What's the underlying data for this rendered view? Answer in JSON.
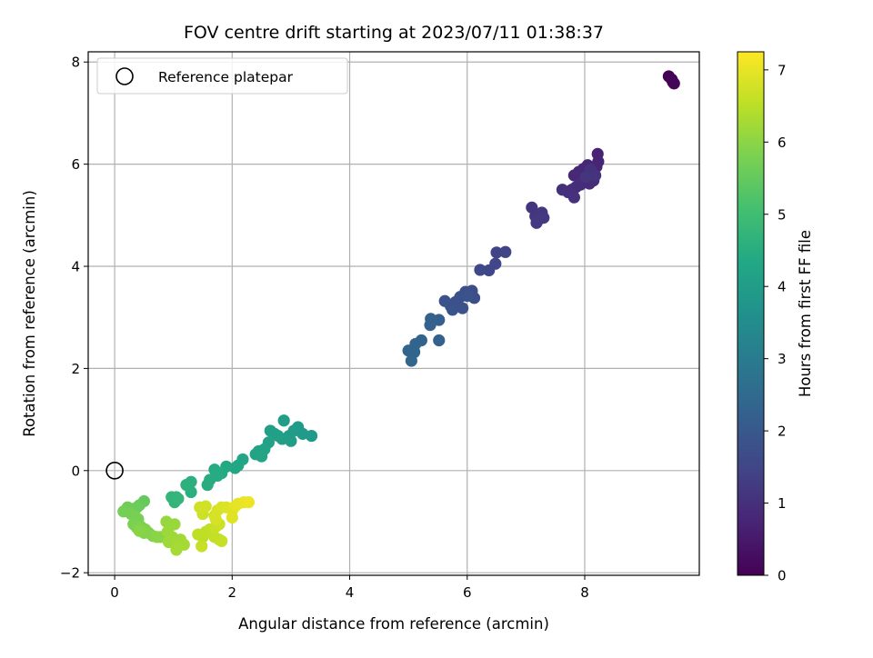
{
  "chart_data": {
    "type": "scatter",
    "title": "FOV centre drift starting at 2023/07/11 01:38:37",
    "xlabel": "Angular distance from reference (arcmin)",
    "ylabel": "Rotation from reference (arcmin)",
    "xlim": [
      -0.45,
      9.95
    ],
    "ylim": [
      -2.05,
      8.2
    ],
    "xticks": [
      0,
      2,
      4,
      6,
      8
    ],
    "xtick_labels": [
      "0",
      "2",
      "4",
      "6",
      "8"
    ],
    "yticks": [
      -2,
      0,
      2,
      4,
      6,
      8
    ],
    "ytick_labels": [
      "−2",
      "0",
      "2",
      "4",
      "6",
      "8"
    ],
    "grid": true,
    "legend": {
      "placement": "upper-left",
      "entries": [
        {
          "label": "Reference platepar",
          "marker": "open-circle"
        }
      ]
    },
    "reference_point": {
      "x": 0,
      "y": 0
    },
    "colorbar": {
      "label": "Hours from first FF file",
      "colormap": "viridis",
      "range": [
        0,
        7.25
      ],
      "ticks": [
        0,
        1,
        2,
        3,
        4,
        5,
        6,
        7
      ],
      "tick_labels": [
        "0",
        "1",
        "2",
        "3",
        "4",
        "5",
        "6",
        "7"
      ]
    },
    "series": [
      {
        "points": [
          {
            "x": 9.43,
            "y": 7.72,
            "t": 0.0
          },
          {
            "x": 9.48,
            "y": 7.66,
            "t": 0.03
          },
          {
            "x": 9.52,
            "y": 7.58,
            "t": 0.06
          },
          {
            "x": 9.5,
            "y": 7.61,
            "t": 0.09
          },
          {
            "x": 8.22,
            "y": 6.2,
            "t": 0.7
          },
          {
            "x": 8.23,
            "y": 6.05,
            "t": 0.72
          },
          {
            "x": 8.2,
            "y": 5.95,
            "t": 0.74
          },
          {
            "x": 8.12,
            "y": 5.85,
            "t": 0.76
          },
          {
            "x": 8.05,
            "y": 5.98,
            "t": 0.78
          },
          {
            "x": 7.98,
            "y": 5.91,
            "t": 0.8
          },
          {
            "x": 7.9,
            "y": 5.85,
            "t": 0.82
          },
          {
            "x": 7.82,
            "y": 5.78,
            "t": 0.84
          },
          {
            "x": 8.0,
            "y": 5.7,
            "t": 0.86
          },
          {
            "x": 8.08,
            "y": 5.62,
            "t": 0.88
          },
          {
            "x": 8.15,
            "y": 5.68,
            "t": 0.9
          },
          {
            "x": 7.93,
            "y": 5.6,
            "t": 0.92
          },
          {
            "x": 7.85,
            "y": 5.55,
            "t": 0.94
          },
          {
            "x": 7.78,
            "y": 5.5,
            "t": 0.96
          },
          {
            "x": 7.72,
            "y": 5.45,
            "t": 0.98
          },
          {
            "x": 7.62,
            "y": 5.5,
            "t": 1.0
          },
          {
            "x": 7.82,
            "y": 5.35,
            "t": 1.02
          },
          {
            "x": 8.1,
            "y": 5.9,
            "t": 1.04
          },
          {
            "x": 8.18,
            "y": 5.78,
            "t": 1.06
          },
          {
            "x": 8.02,
            "y": 5.75,
            "t": 1.08
          },
          {
            "x": 7.1,
            "y": 5.15,
            "t": 1.12
          },
          {
            "x": 7.27,
            "y": 5.05,
            "t": 1.14
          },
          {
            "x": 7.16,
            "y": 4.98,
            "t": 1.16
          },
          {
            "x": 7.3,
            "y": 4.95,
            "t": 1.18
          },
          {
            "x": 7.22,
            "y": 4.92,
            "t": 1.2
          },
          {
            "x": 7.18,
            "y": 4.85,
            "t": 1.22
          },
          {
            "x": 6.65,
            "y": 4.28,
            "t": 1.45
          },
          {
            "x": 6.5,
            "y": 4.27,
            "t": 1.48
          },
          {
            "x": 6.48,
            "y": 4.05,
            "t": 1.5
          },
          {
            "x": 6.37,
            "y": 3.92,
            "t": 1.52
          },
          {
            "x": 6.22,
            "y": 3.93,
            "t": 1.55
          },
          {
            "x": 6.08,
            "y": 3.52,
            "t": 1.7
          },
          {
            "x": 5.97,
            "y": 3.5,
            "t": 1.72
          },
          {
            "x": 6.12,
            "y": 3.38,
            "t": 1.74
          },
          {
            "x": 5.88,
            "y": 3.4,
            "t": 1.76
          },
          {
            "x": 5.8,
            "y": 3.3,
            "t": 1.78
          },
          {
            "x": 5.72,
            "y": 3.22,
            "t": 1.8
          },
          {
            "x": 5.92,
            "y": 3.18,
            "t": 1.82
          },
          {
            "x": 5.62,
            "y": 3.32,
            "t": 1.84
          },
          {
            "x": 5.75,
            "y": 3.15,
            "t": 1.86
          },
          {
            "x": 6.0,
            "y": 3.42,
            "t": 1.88
          },
          {
            "x": 5.52,
            "y": 2.95,
            "t": 2.2
          },
          {
            "x": 5.38,
            "y": 2.97,
            "t": 2.22
          },
          {
            "x": 5.37,
            "y": 2.85,
            "t": 2.24
          },
          {
            "x": 5.52,
            "y": 2.55,
            "t": 2.26
          },
          {
            "x": 5.22,
            "y": 2.55,
            "t": 2.3
          },
          {
            "x": 5.12,
            "y": 2.48,
            "t": 2.32
          },
          {
            "x": 5.0,
            "y": 2.35,
            "t": 2.34
          },
          {
            "x": 5.1,
            "y": 2.32,
            "t": 2.36
          },
          {
            "x": 5.05,
            "y": 2.15,
            "t": 2.38
          },
          {
            "x": 3.35,
            "y": 0.68,
            "t": 3.9
          },
          {
            "x": 3.2,
            "y": 0.72,
            "t": 3.92
          },
          {
            "x": 3.12,
            "y": 0.85,
            "t": 3.94
          },
          {
            "x": 3.05,
            "y": 0.78,
            "t": 3.96
          },
          {
            "x": 2.97,
            "y": 0.68,
            "t": 3.98
          },
          {
            "x": 2.88,
            "y": 0.98,
            "t": 4.0
          },
          {
            "x": 2.85,
            "y": 0.62,
            "t": 4.02
          },
          {
            "x": 3.0,
            "y": 0.58,
            "t": 4.04
          },
          {
            "x": 2.78,
            "y": 0.68,
            "t": 4.06
          },
          {
            "x": 2.65,
            "y": 0.78,
            "t": 4.08
          },
          {
            "x": 2.72,
            "y": 0.72,
            "t": 4.1
          },
          {
            "x": 2.62,
            "y": 0.55,
            "t": 4.12
          },
          {
            "x": 2.55,
            "y": 0.42,
            "t": 4.16
          },
          {
            "x": 2.45,
            "y": 0.38,
            "t": 4.18
          },
          {
            "x": 2.4,
            "y": 0.32,
            "t": 4.2
          },
          {
            "x": 2.5,
            "y": 0.28,
            "t": 4.22
          },
          {
            "x": 2.18,
            "y": 0.22,
            "t": 4.28
          },
          {
            "x": 2.1,
            "y": 0.1,
            "t": 4.3
          },
          {
            "x": 2.05,
            "y": 0.05,
            "t": 4.32
          },
          {
            "x": 1.9,
            "y": 0.08,
            "t": 4.36
          },
          {
            "x": 1.82,
            "y": -0.05,
            "t": 4.4
          },
          {
            "x": 1.7,
            "y": 0.02,
            "t": 4.42
          },
          {
            "x": 1.75,
            "y": -0.1,
            "t": 4.44
          },
          {
            "x": 1.62,
            "y": -0.18,
            "t": 4.46
          },
          {
            "x": 1.58,
            "y": -0.28,
            "t": 4.48
          },
          {
            "x": 1.3,
            "y": -0.42,
            "t": 4.56
          },
          {
            "x": 1.3,
            "y": -0.22,
            "t": 4.58
          },
          {
            "x": 1.22,
            "y": -0.28,
            "t": 4.6
          },
          {
            "x": 1.05,
            "y": -0.52,
            "t": 4.7
          },
          {
            "x": 0.97,
            "y": -0.52,
            "t": 4.72
          },
          {
            "x": 1.02,
            "y": -0.62,
            "t": 4.74
          },
          {
            "x": 1.08,
            "y": -0.55,
            "t": 4.76
          },
          {
            "x": 0.5,
            "y": -0.6,
            "t": 5.5
          },
          {
            "x": 0.42,
            "y": -0.68,
            "t": 5.55
          },
          {
            "x": 0.38,
            "y": -0.72,
            "t": 5.58
          },
          {
            "x": 0.3,
            "y": -0.75,
            "t": 5.6
          },
          {
            "x": 0.22,
            "y": -0.72,
            "t": 5.65
          },
          {
            "x": 0.15,
            "y": -0.8,
            "t": 5.7
          },
          {
            "x": 0.28,
            "y": -0.85,
            "t": 5.72
          },
          {
            "x": 0.35,
            "y": -0.9,
            "t": 5.74
          },
          {
            "x": 0.4,
            "y": -0.95,
            "t": 5.76
          },
          {
            "x": 0.32,
            "y": -1.05,
            "t": 5.8
          },
          {
            "x": 0.38,
            "y": -1.12,
            "t": 5.82
          },
          {
            "x": 0.45,
            "y": -1.1,
            "t": 5.84
          },
          {
            "x": 0.52,
            "y": -1.15,
            "t": 5.86
          },
          {
            "x": 0.58,
            "y": -1.22,
            "t": 5.88
          },
          {
            "x": 0.65,
            "y": -1.28,
            "t": 5.9
          },
          {
            "x": 0.5,
            "y": -1.22,
            "t": 5.92
          },
          {
            "x": 0.42,
            "y": -1.18,
            "t": 5.94
          },
          {
            "x": 0.72,
            "y": -1.3,
            "t": 5.96
          },
          {
            "x": 0.78,
            "y": -1.3,
            "t": 5.98
          },
          {
            "x": 0.88,
            "y": -1.0,
            "t": 6.1
          },
          {
            "x": 0.95,
            "y": -1.08,
            "t": 6.12
          },
          {
            "x": 1.02,
            "y": -1.05,
            "t": 6.14
          },
          {
            "x": 0.9,
            "y": -1.2,
            "t": 6.16
          },
          {
            "x": 0.98,
            "y": -1.3,
            "t": 6.18
          },
          {
            "x": 0.92,
            "y": -1.4,
            "t": 6.2
          },
          {
            "x": 1.05,
            "y": -1.45,
            "t": 6.22
          },
          {
            "x": 1.12,
            "y": -1.35,
            "t": 6.24
          },
          {
            "x": 1.18,
            "y": -1.45,
            "t": 6.26
          },
          {
            "x": 1.05,
            "y": -1.55,
            "t": 6.28
          },
          {
            "x": 1.5,
            "y": -1.3,
            "t": 6.5
          },
          {
            "x": 1.42,
            "y": -1.25,
            "t": 6.52
          },
          {
            "x": 1.55,
            "y": -1.2,
            "t": 6.54
          },
          {
            "x": 1.62,
            "y": -1.15,
            "t": 6.56
          },
          {
            "x": 1.7,
            "y": -1.3,
            "t": 6.58
          },
          {
            "x": 1.78,
            "y": -1.35,
            "t": 6.6
          },
          {
            "x": 1.82,
            "y": -1.38,
            "t": 6.62
          },
          {
            "x": 1.48,
            "y": -1.48,
            "t": 6.64
          },
          {
            "x": 1.72,
            "y": -1.1,
            "t": 6.66
          },
          {
            "x": 1.78,
            "y": -1.05,
            "t": 6.68
          },
          {
            "x": 1.5,
            "y": -0.85,
            "t": 6.7
          },
          {
            "x": 1.45,
            "y": -0.72,
            "t": 6.72
          },
          {
            "x": 1.55,
            "y": -0.7,
            "t": 6.74
          },
          {
            "x": 1.7,
            "y": -0.88,
            "t": 6.78
          },
          {
            "x": 1.72,
            "y": -0.95,
            "t": 6.8
          },
          {
            "x": 1.75,
            "y": -0.78,
            "t": 6.82
          },
          {
            "x": 1.82,
            "y": -0.72,
            "t": 6.84
          },
          {
            "x": 1.9,
            "y": -0.72,
            "t": 6.86
          },
          {
            "x": 2.0,
            "y": -0.78,
            "t": 6.9
          },
          {
            "x": 2.0,
            "y": -0.92,
            "t": 6.92
          },
          {
            "x": 2.05,
            "y": -0.7,
            "t": 6.94
          },
          {
            "x": 2.1,
            "y": -0.65,
            "t": 6.98
          },
          {
            "x": 2.2,
            "y": -0.62,
            "t": 7.02
          },
          {
            "x": 2.28,
            "y": -0.62,
            "t": 7.06
          }
        ]
      }
    ]
  }
}
